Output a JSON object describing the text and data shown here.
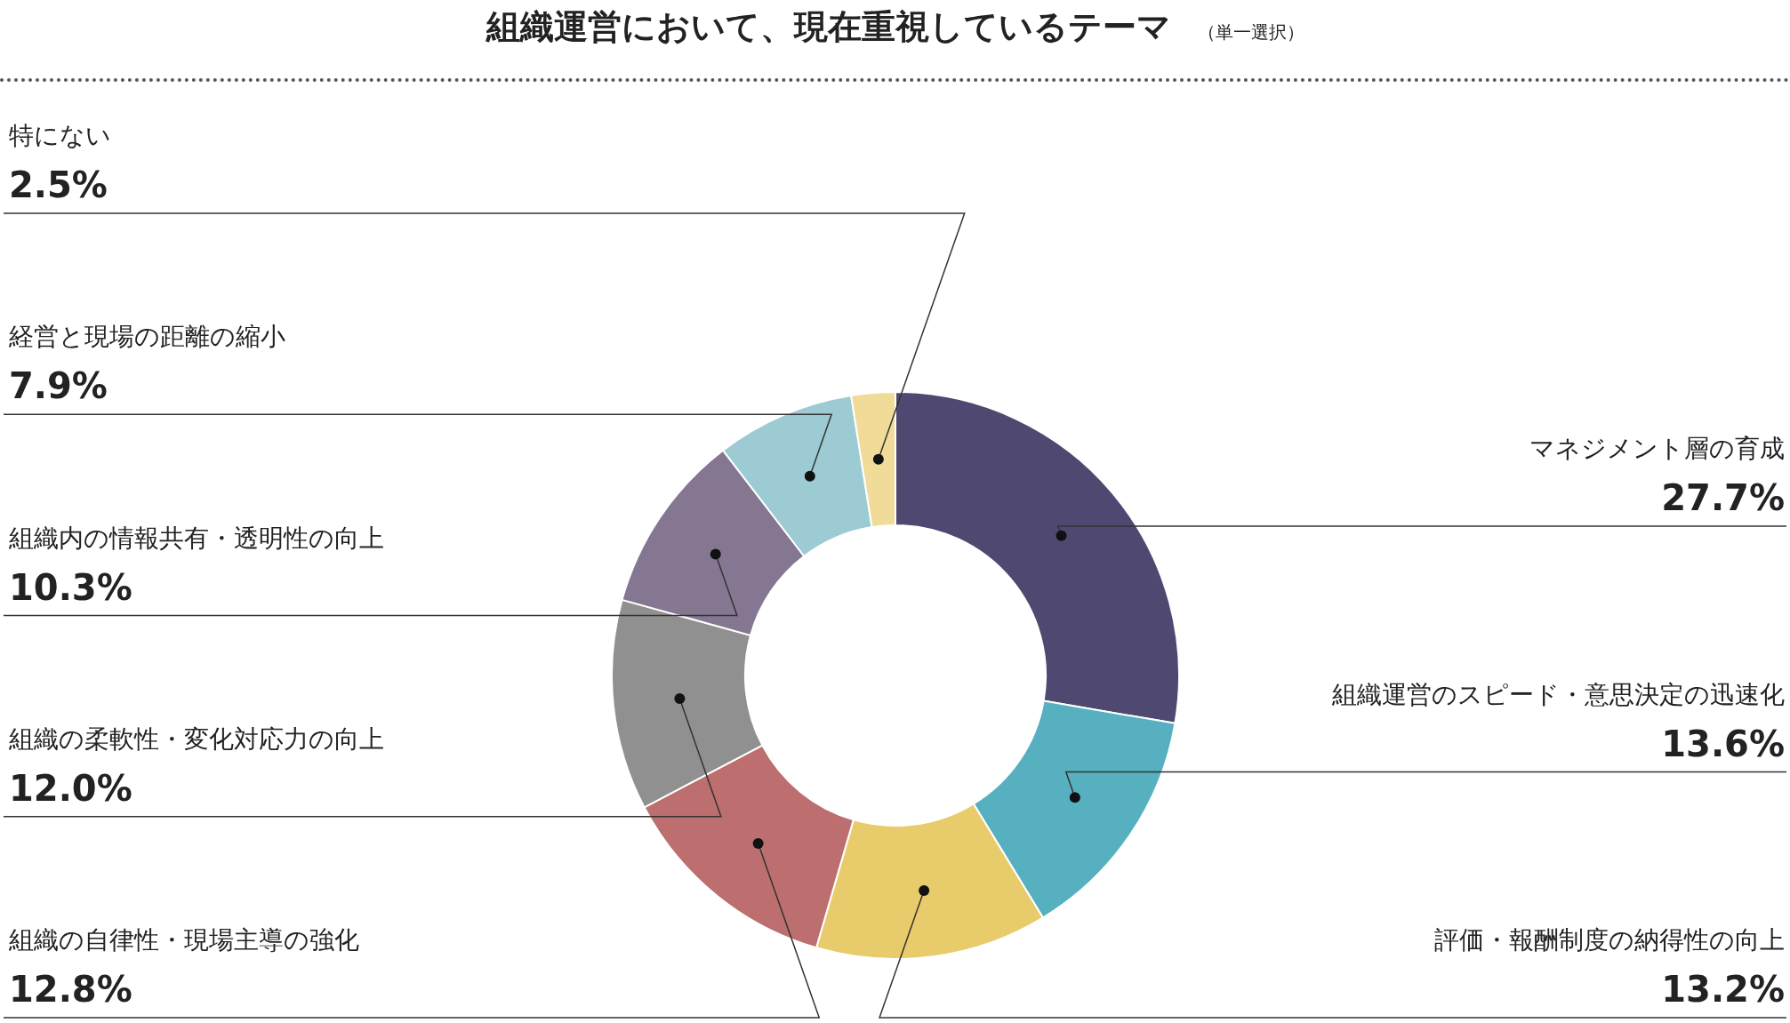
{
  "chart_data": {
    "type": "donut",
    "title": "組織運営において、現在重視しているテーマ",
    "subtitle": "（単一選択）",
    "categories": [
      "マネジメント層の育成",
      "組織運営のスピード・意思決定の迅速化",
      "評価・報酬制度の納得性の向上",
      "組織の自律性・現場主導の強化",
      "組織の柔軟性・変化対応力の向上",
      "組織内の情報共有・透明性の向上",
      "経営と現場の距離の縮小",
      "特にない"
    ],
    "values": [
      27.7,
      13.6,
      13.2,
      12.8,
      12.0,
      10.3,
      7.9,
      2.5
    ],
    "value_labels": [
      "27.7%",
      "13.6%",
      "13.2%",
      "12.8%",
      "12.0%",
      "10.3%",
      "7.9%",
      "2.5%"
    ],
    "colors": [
      "#4f4870",
      "#56b0bf",
      "#e8cb6a",
      "#bc6f6e",
      "#8f908f",
      "#857791",
      "#9ccbd3",
      "#f0dc98"
    ],
    "legend": false
  }
}
